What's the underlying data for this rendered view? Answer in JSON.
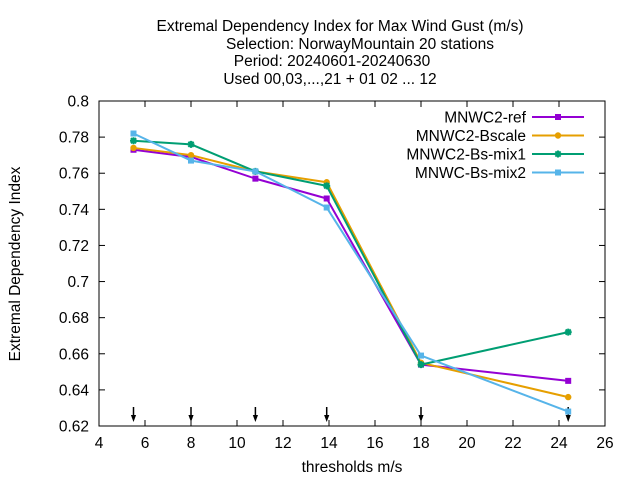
{
  "chart_data": {
    "type": "line",
    "title_lines": [
      "Extremal Dependency Index  for Max Wind Gust (m/s)",
      "Selection: NorwayMountain     20 stations",
      "Period: 20240601-20240630",
      "Used 00,03,...,21 + 01 02 ... 12"
    ],
    "xlabel": "thresholds m/s",
    "ylabel": "Extremal Dependency Index",
    "xlim": [
      4,
      26
    ],
    "ylim": [
      0.62,
      0.8
    ],
    "x_ticks": [
      4,
      6,
      8,
      10,
      12,
      14,
      16,
      18,
      20,
      22,
      24,
      26
    ],
    "x_tick_labels": [
      "4",
      "6",
      "8",
      "10",
      "12",
      "14",
      "16",
      "18",
      "20",
      "22",
      "24",
      "26"
    ],
    "y_ticks": [
      0.62,
      0.64,
      0.66,
      0.68,
      0.7,
      0.72,
      0.74,
      0.76,
      0.78,
      0.8
    ],
    "y_tick_labels": [
      "0.62",
      "0.64",
      "0.66",
      "0.68",
      "0.7",
      "0.72",
      "0.74",
      "0.76",
      "0.78",
      "0.8"
    ],
    "grid": false,
    "legend_position": "top-right",
    "threshold_arrows_x": [
      5.5,
      8,
      10.8,
      13.9,
      18,
      24.4
    ],
    "series": [
      {
        "name": "MNWC2-ref",
        "color": "#9400d3",
        "marker": "square",
        "x": [
          5.5,
          8,
          10.8,
          13.9,
          18,
          24.4
        ],
        "y": [
          0.773,
          0.769,
          0.757,
          0.746,
          0.654,
          0.645
        ]
      },
      {
        "name": "MNWC2-Bscale",
        "color": "#e69f00",
        "marker": "circle",
        "x": [
          5.5,
          8,
          10.8,
          13.9,
          18,
          24.4
        ],
        "y": [
          0.774,
          0.77,
          0.761,
          0.755,
          0.655,
          0.636
        ]
      },
      {
        "name": "MNWC2-Bs-mix1",
        "color": "#009e73",
        "marker": "star",
        "x": [
          5.5,
          8,
          10.8,
          13.9,
          18,
          24.4
        ],
        "y": [
          0.778,
          0.776,
          0.761,
          0.753,
          0.654,
          0.672
        ]
      },
      {
        "name": "MNWC-Bs-mix2",
        "color": "#56b4e9",
        "marker": "square",
        "x": [
          5.5,
          8,
          10.8,
          13.9,
          18,
          24.4
        ],
        "y": [
          0.782,
          0.767,
          0.761,
          0.741,
          0.659,
          0.628
        ]
      }
    ]
  }
}
